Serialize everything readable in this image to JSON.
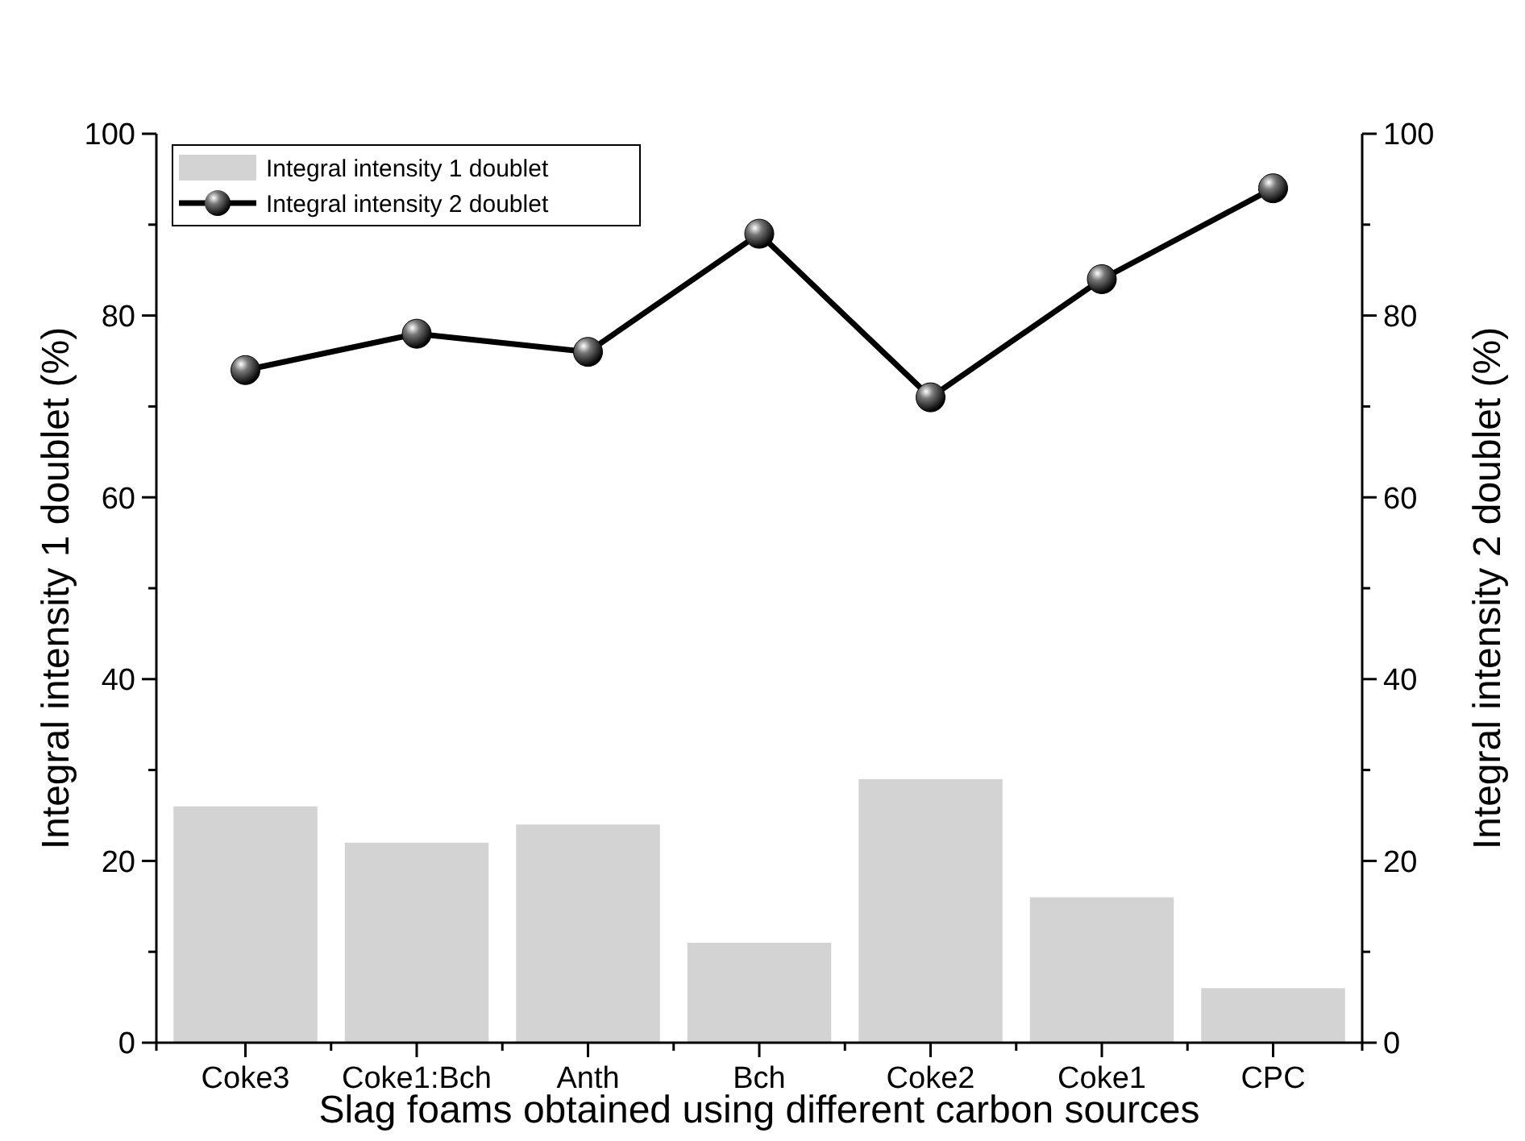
{
  "chart_data": {
    "type": "bar",
    "xlabel": "Slag foams obtained using different carbon sources",
    "ylabel": "Integral intensity 1 doublet (%)",
    "y2label": "Integral intensity 2 doublet (%)",
    "categories": [
      "Coke3",
      "Coke1:Bch",
      "Anth",
      "Bch",
      "Coke2",
      "Coke1",
      "CPC"
    ],
    "series": [
      {
        "name": "Integral intensity 1 doublet",
        "type": "bar",
        "color": "#d3d3d3",
        "values": [
          26,
          22,
          24,
          11,
          29,
          16,
          6
        ]
      },
      {
        "name": "Integral intensity 2 doublet",
        "type": "line",
        "axis": "y2",
        "color": "#000000",
        "marker": "circle",
        "values": [
          74,
          78,
          76,
          89,
          71,
          84,
          94
        ]
      }
    ],
    "ylim": [
      0,
      100
    ],
    "yticks": [
      0,
      {
        "value": 10,
        "label": null
      },
      20,
      {
        "value": 30,
        "label": null
      },
      40,
      {
        "value": 50,
        "label": null
      },
      60,
      {
        "value": 70,
        "label": null
      },
      80,
      {
        "value": 90,
        "label": null
      },
      100
    ],
    "y2lim": [
      0,
      100
    ],
    "y2ticks": [
      0,
      {
        "value": 10,
        "label": null
      },
      20,
      {
        "value": 30,
        "label": null
      },
      40,
      {
        "value": 50,
        "label": null
      },
      60,
      {
        "value": 70,
        "label": null
      },
      80,
      {
        "value": 90,
        "label": null
      },
      100
    ],
    "legend": "top left",
    "grid": false
  }
}
